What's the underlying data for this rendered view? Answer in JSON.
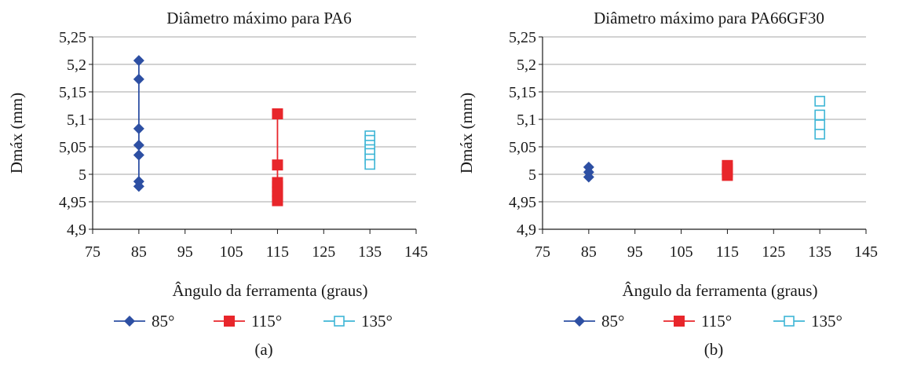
{
  "chart_data": [
    {
      "type": "scatter",
      "panel": "(a)",
      "title": "Diâmetro máximo para PA6",
      "xlabel": "Ângulo da ferramenta (graus)",
      "ylabel": "Dmáx (mm)",
      "xlim": [
        75,
        145
      ],
      "ylim": [
        4.9,
        5.25
      ],
      "xticks": [
        "75",
        "85",
        "95",
        "105",
        "115",
        "125",
        "135",
        "145"
      ],
      "yticks": [
        "4,9",
        "4,95",
        "5",
        "5,05",
        "5,1",
        "5,15",
        "5,2",
        "5,25"
      ],
      "grid": "horizontal",
      "legend_position": "bottom",
      "series": [
        {
          "name": "85°",
          "color": "#2d4fa3",
          "marker": "diamond",
          "line": true,
          "x": 85,
          "values": [
            5.207,
            5.173,
            5.083,
            5.053,
            5.035,
            4.987,
            4.978
          ]
        },
        {
          "name": "115°",
          "color": "#e8262b",
          "marker": "square",
          "line": true,
          "x": 115,
          "values": [
            5.11,
            5.017,
            4.985,
            4.978,
            4.968,
            4.96,
            4.952
          ]
        },
        {
          "name": "135°",
          "color": "#3fb6d6",
          "marker": "square-open",
          "line": false,
          "x": 135,
          "values": [
            5.07,
            5.062,
            5.053,
            5.045,
            5.038,
            5.028,
            5.018
          ]
        }
      ]
    },
    {
      "type": "scatter",
      "panel": "(b)",
      "title": "Diâmetro máximo para PA66GF30",
      "xlabel": "Ângulo da ferramenta (graus)",
      "ylabel": "Dmáx (mm)",
      "xlim": [
        75,
        145
      ],
      "ylim": [
        4.9,
        5.25
      ],
      "xticks": [
        "75",
        "85",
        "95",
        "105",
        "115",
        "125",
        "135",
        "145"
      ],
      "yticks": [
        "4,9",
        "4,95",
        "5",
        "5,05",
        "5,1",
        "5,15",
        "5,2",
        "5,25"
      ],
      "grid": "horizontal",
      "legend_position": "bottom",
      "series": [
        {
          "name": "85°",
          "color": "#2d4fa3",
          "marker": "diamond",
          "line": true,
          "x": 85,
          "values": [
            5.013,
            5.004,
            4.995
          ]
        },
        {
          "name": "115°",
          "color": "#e8262b",
          "marker": "square",
          "line": true,
          "x": 115,
          "values": [
            5.016,
            5.01,
            5.004,
            4.998
          ]
        },
        {
          "name": "135°",
          "color": "#3fb6d6",
          "marker": "square-open",
          "line": false,
          "x": 135,
          "values": [
            5.133,
            5.108,
            5.09,
            5.073
          ]
        }
      ]
    }
  ]
}
